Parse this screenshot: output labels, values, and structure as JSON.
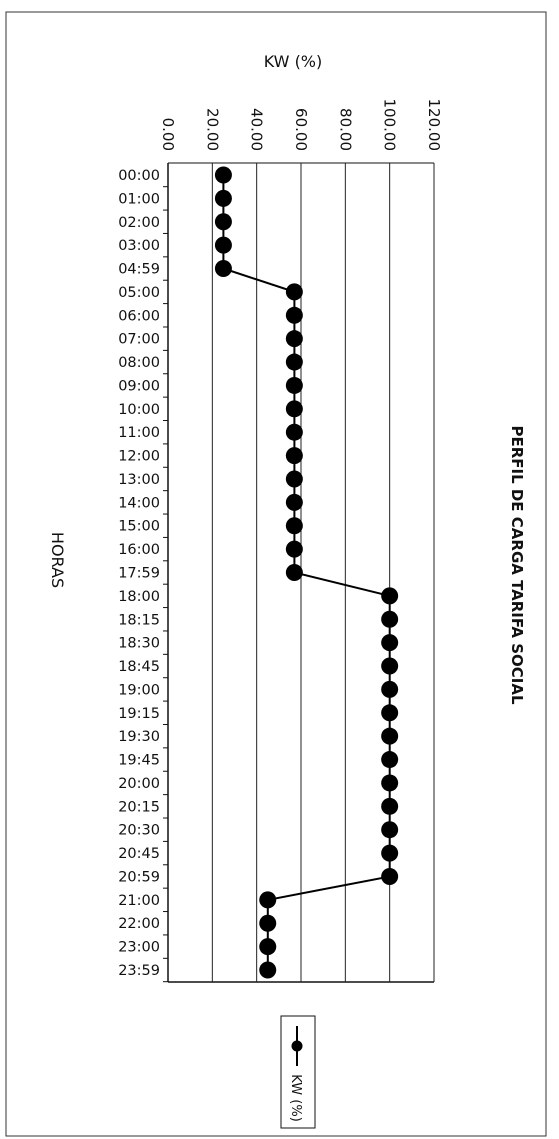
{
  "chart_data": {
    "type": "line",
    "title": "PERFIL DE CARGA TARIFA SOCIAL",
    "xlabel": "HORAS",
    "ylabel": "KW (%)",
    "ylim": [
      0,
      120
    ],
    "y_ticks": [
      "0.00",
      "20.00",
      "40.00",
      "60.00",
      "80.00",
      "100.00",
      "120.00"
    ],
    "grid": true,
    "legend_position": "bottom",
    "categories": [
      "00:00",
      "01:00",
      "02:00",
      "03:00",
      "04:59",
      "05:00",
      "06:00",
      "07:00",
      "08:00",
      "09:00",
      "10:00",
      "11:00",
      "12:00",
      "13:00",
      "14:00",
      "15:00",
      "16:00",
      "17:59",
      "18:00",
      "18:15",
      "18:30",
      "18:45",
      "19:00",
      "19:15",
      "19:30",
      "19:45",
      "20:00",
      "20:15",
      "20:30",
      "20:45",
      "20:59",
      "21:00",
      "22:00",
      "23:00",
      "23:59"
    ],
    "series": [
      {
        "name": "KW (%)",
        "color": "#000000",
        "values": [
          25,
          25,
          25,
          25,
          25,
          57,
          57,
          57,
          57,
          57,
          57,
          57,
          57,
          57,
          57,
          57,
          57,
          57,
          100,
          100,
          100,
          100,
          100,
          100,
          100,
          100,
          100,
          100,
          100,
          100,
          100,
          45,
          45,
          45,
          45
        ]
      }
    ]
  }
}
